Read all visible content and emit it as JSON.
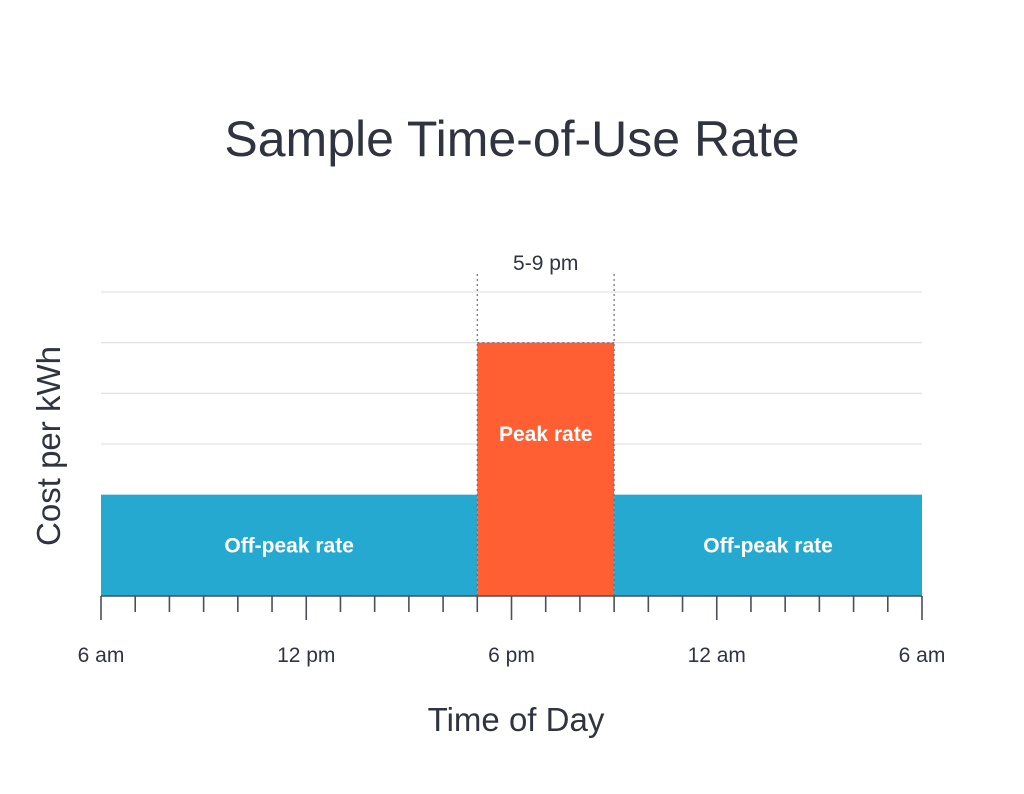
{
  "chart_data": {
    "type": "bar",
    "title": "Sample Time-of-Use Rate",
    "xlabel": "Time of Day",
    "ylabel": "Cost per kWh",
    "x_unit": "hours after 6 am",
    "xlim": [
      0,
      24
    ],
    "ylim": [
      0,
      6
    ],
    "grid": true,
    "x_ticks": [
      {
        "value": 0,
        "label": "6 am"
      },
      {
        "value": 6,
        "label": "12 pm"
      },
      {
        "value": 12,
        "label": "6 pm"
      },
      {
        "value": 18,
        "label": "12 am"
      },
      {
        "value": 24,
        "label": "6 am"
      }
    ],
    "minor_tick_step": 1,
    "gridlines": [
      3,
      4,
      5,
      6
    ],
    "segments": [
      {
        "name": "Off-peak rate",
        "label": "Off-peak rate",
        "start": 0,
        "end": 11,
        "value": 2,
        "color": "#26a9d0",
        "label_position": "inside-bottom"
      },
      {
        "name": "Peak rate",
        "label": "Peak rate",
        "start": 11,
        "end": 15,
        "value": 5,
        "color": "#ff5f33",
        "label_position": "inside-middle"
      },
      {
        "name": "Off-peak rate",
        "label": "Off-peak rate",
        "start": 15,
        "end": 24,
        "value": 2,
        "color": "#26a9d0",
        "label_position": "inside-bottom"
      }
    ],
    "annotation": {
      "text": "5-9 pm",
      "start": 11,
      "end": 15
    }
  }
}
